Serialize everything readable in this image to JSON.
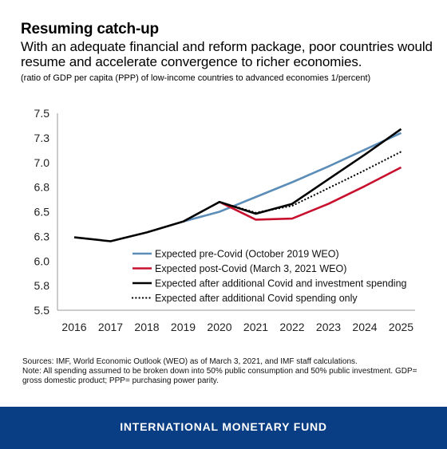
{
  "header": {
    "title": "Resuming catch-up",
    "subtitle": "With an adequate financial and reform package, poor countries would resume and accelerate convergence to richer economies.",
    "note": "(ratio of GDP per capita (PPP) of low-income countries to advanced economies 1/percent)"
  },
  "chart_data": {
    "type": "line",
    "x": [
      "2016",
      "2017",
      "2018",
      "2019",
      "2020",
      "2021",
      "2022",
      "2023",
      "2024",
      "2025"
    ],
    "ylim": [
      5.5,
      7.5
    ],
    "yticks": [
      "7.5",
      "7.3",
      "7.0",
      "6.8",
      "6.5",
      "6.3",
      "6.0",
      "5.8",
      "5.5"
    ],
    "grid": false,
    "legend_position": "bottom-center",
    "series": [
      {
        "name": "Expected pre-Covid (October 2019 WEO)",
        "color": "#5b8db8",
        "dash": "solid",
        "values": [
          null,
          null,
          null,
          6.4,
          6.5,
          6.65,
          6.8,
          6.96,
          7.13,
          7.3
        ]
      },
      {
        "name": "Expected post-Covid (March 3, 2021 WEO)",
        "color": "#c8102e",
        "dash": "solid",
        "values": [
          null,
          null,
          null,
          null,
          6.6,
          6.42,
          6.43,
          6.58,
          6.76,
          6.95
        ]
      },
      {
        "name": "Expected after additional Covid and investment spending",
        "color": "#000000",
        "dash": "solid",
        "values": [
          6.24,
          6.2,
          6.29,
          6.4,
          6.6,
          6.48,
          6.58,
          6.83,
          7.08,
          7.34
        ]
      },
      {
        "name": "Expected after additional Covid spending only",
        "color": "#000000",
        "dash": "dotted",
        "values": [
          null,
          null,
          null,
          null,
          6.6,
          6.49,
          6.56,
          6.74,
          6.92,
          7.11
        ]
      }
    ]
  },
  "sources": {
    "line1": "Sources: IMF, World Economic Outlook (WEO) as of March 3, 2021, and IMF staff calculations.",
    "line2": "Note: All spending assumed to be broken down into 50% public consumption and 50% public investment. GDP= gross domestic product; PPP= purchasing power parity."
  },
  "footer": {
    "text": "INTERNATIONAL MONETARY FUND",
    "bg_color": "#0a3e84"
  }
}
